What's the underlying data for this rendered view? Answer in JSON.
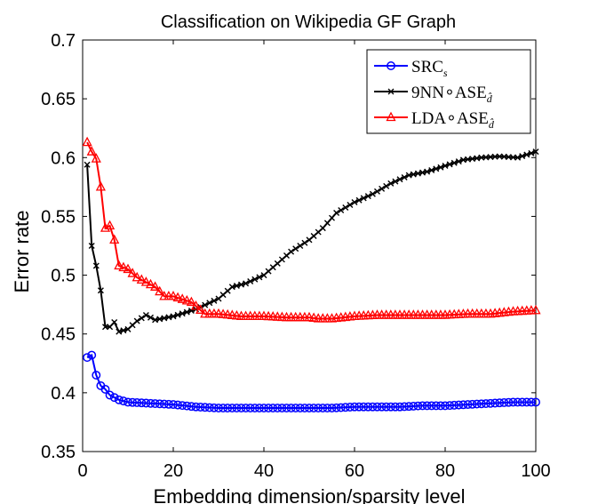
{
  "chart_data": {
    "type": "line",
    "title": "Classification on Wikipedia GF Graph",
    "xlabel": "Embedding dimension/sparsity level",
    "ylabel": "Error rate",
    "xlim": [
      0,
      100
    ],
    "ylim": [
      0.35,
      0.7
    ],
    "xticks": [
      "0",
      "20",
      "40",
      "60",
      "80",
      "100"
    ],
    "yticks": [
      "0.35",
      "0.4",
      "0.45",
      "0.5",
      "0.55",
      "0.6",
      "0.65",
      "0.7"
    ],
    "grid": false,
    "legend_position": "top-right",
    "series": [
      {
        "name": "SRC",
        "name_sub": "s",
        "color": "#0000ff",
        "marker": "circle",
        "keypoints": [
          [
            1,
            0.43
          ],
          [
            2,
            0.432
          ],
          [
            3,
            0.415
          ],
          [
            4,
            0.406
          ],
          [
            5,
            0.403
          ],
          [
            6,
            0.398
          ],
          [
            7,
            0.396
          ],
          [
            8,
            0.394
          ],
          [
            9,
            0.393
          ],
          [
            10,
            0.392
          ],
          [
            15,
            0.391
          ],
          [
            20,
            0.39
          ],
          [
            25,
            0.388
          ],
          [
            30,
            0.387
          ],
          [
            35,
            0.387
          ],
          [
            40,
            0.387
          ],
          [
            45,
            0.387
          ],
          [
            50,
            0.387
          ],
          [
            55,
            0.387
          ],
          [
            60,
            0.388
          ],
          [
            65,
            0.388
          ],
          [
            70,
            0.388
          ],
          [
            75,
            0.389
          ],
          [
            80,
            0.389
          ],
          [
            85,
            0.39
          ],
          [
            90,
            0.391
          ],
          [
            95,
            0.392
          ],
          [
            100,
            0.392
          ]
        ]
      },
      {
        "name": "9NN∘ASE",
        "name_sub": "d̂",
        "color": "#000000",
        "marker": "x",
        "keypoints": [
          [
            1,
            0.594
          ],
          [
            2,
            0.525
          ],
          [
            3,
            0.508
          ],
          [
            4,
            0.487
          ],
          [
            5,
            0.456
          ],
          [
            6,
            0.456
          ],
          [
            7,
            0.46
          ],
          [
            8,
            0.452
          ],
          [
            10,
            0.454
          ],
          [
            12,
            0.461
          ],
          [
            14,
            0.466
          ],
          [
            16,
            0.462
          ],
          [
            20,
            0.465
          ],
          [
            25,
            0.471
          ],
          [
            30,
            0.48
          ],
          [
            33,
            0.49
          ],
          [
            36,
            0.493
          ],
          [
            40,
            0.5
          ],
          [
            43,
            0.51
          ],
          [
            46,
            0.52
          ],
          [
            50,
            0.53
          ],
          [
            53,
            0.54
          ],
          [
            56,
            0.553
          ],
          [
            60,
            0.562
          ],
          [
            64,
            0.569
          ],
          [
            68,
            0.578
          ],
          [
            72,
            0.585
          ],
          [
            76,
            0.588
          ],
          [
            80,
            0.593
          ],
          [
            84,
            0.598
          ],
          [
            88,
            0.6
          ],
          [
            92,
            0.601
          ],
          [
            96,
            0.6
          ],
          [
            100,
            0.605
          ]
        ]
      },
      {
        "name": "LDA∘ASE",
        "name_sub": "d̂",
        "color": "#ff0000",
        "marker": "triangle",
        "keypoints": [
          [
            1,
            0.613
          ],
          [
            2,
            0.605
          ],
          [
            3,
            0.599
          ],
          [
            4,
            0.575
          ],
          [
            5,
            0.54
          ],
          [
            6,
            0.542
          ],
          [
            7,
            0.53
          ],
          [
            8,
            0.508
          ],
          [
            10,
            0.505
          ],
          [
            12,
            0.498
          ],
          [
            14,
            0.494
          ],
          [
            16,
            0.49
          ],
          [
            18,
            0.482
          ],
          [
            20,
            0.482
          ],
          [
            24,
            0.477
          ],
          [
            27,
            0.467
          ],
          [
            30,
            0.467
          ],
          [
            35,
            0.465
          ],
          [
            40,
            0.465
          ],
          [
            45,
            0.464
          ],
          [
            50,
            0.464
          ],
          [
            52,
            0.463
          ],
          [
            55,
            0.463
          ],
          [
            60,
            0.465
          ],
          [
            65,
            0.466
          ],
          [
            70,
            0.466
          ],
          [
            75,
            0.466
          ],
          [
            80,
            0.466
          ],
          [
            85,
            0.467
          ],
          [
            90,
            0.467
          ],
          [
            95,
            0.469
          ],
          [
            100,
            0.47
          ]
        ]
      }
    ]
  }
}
